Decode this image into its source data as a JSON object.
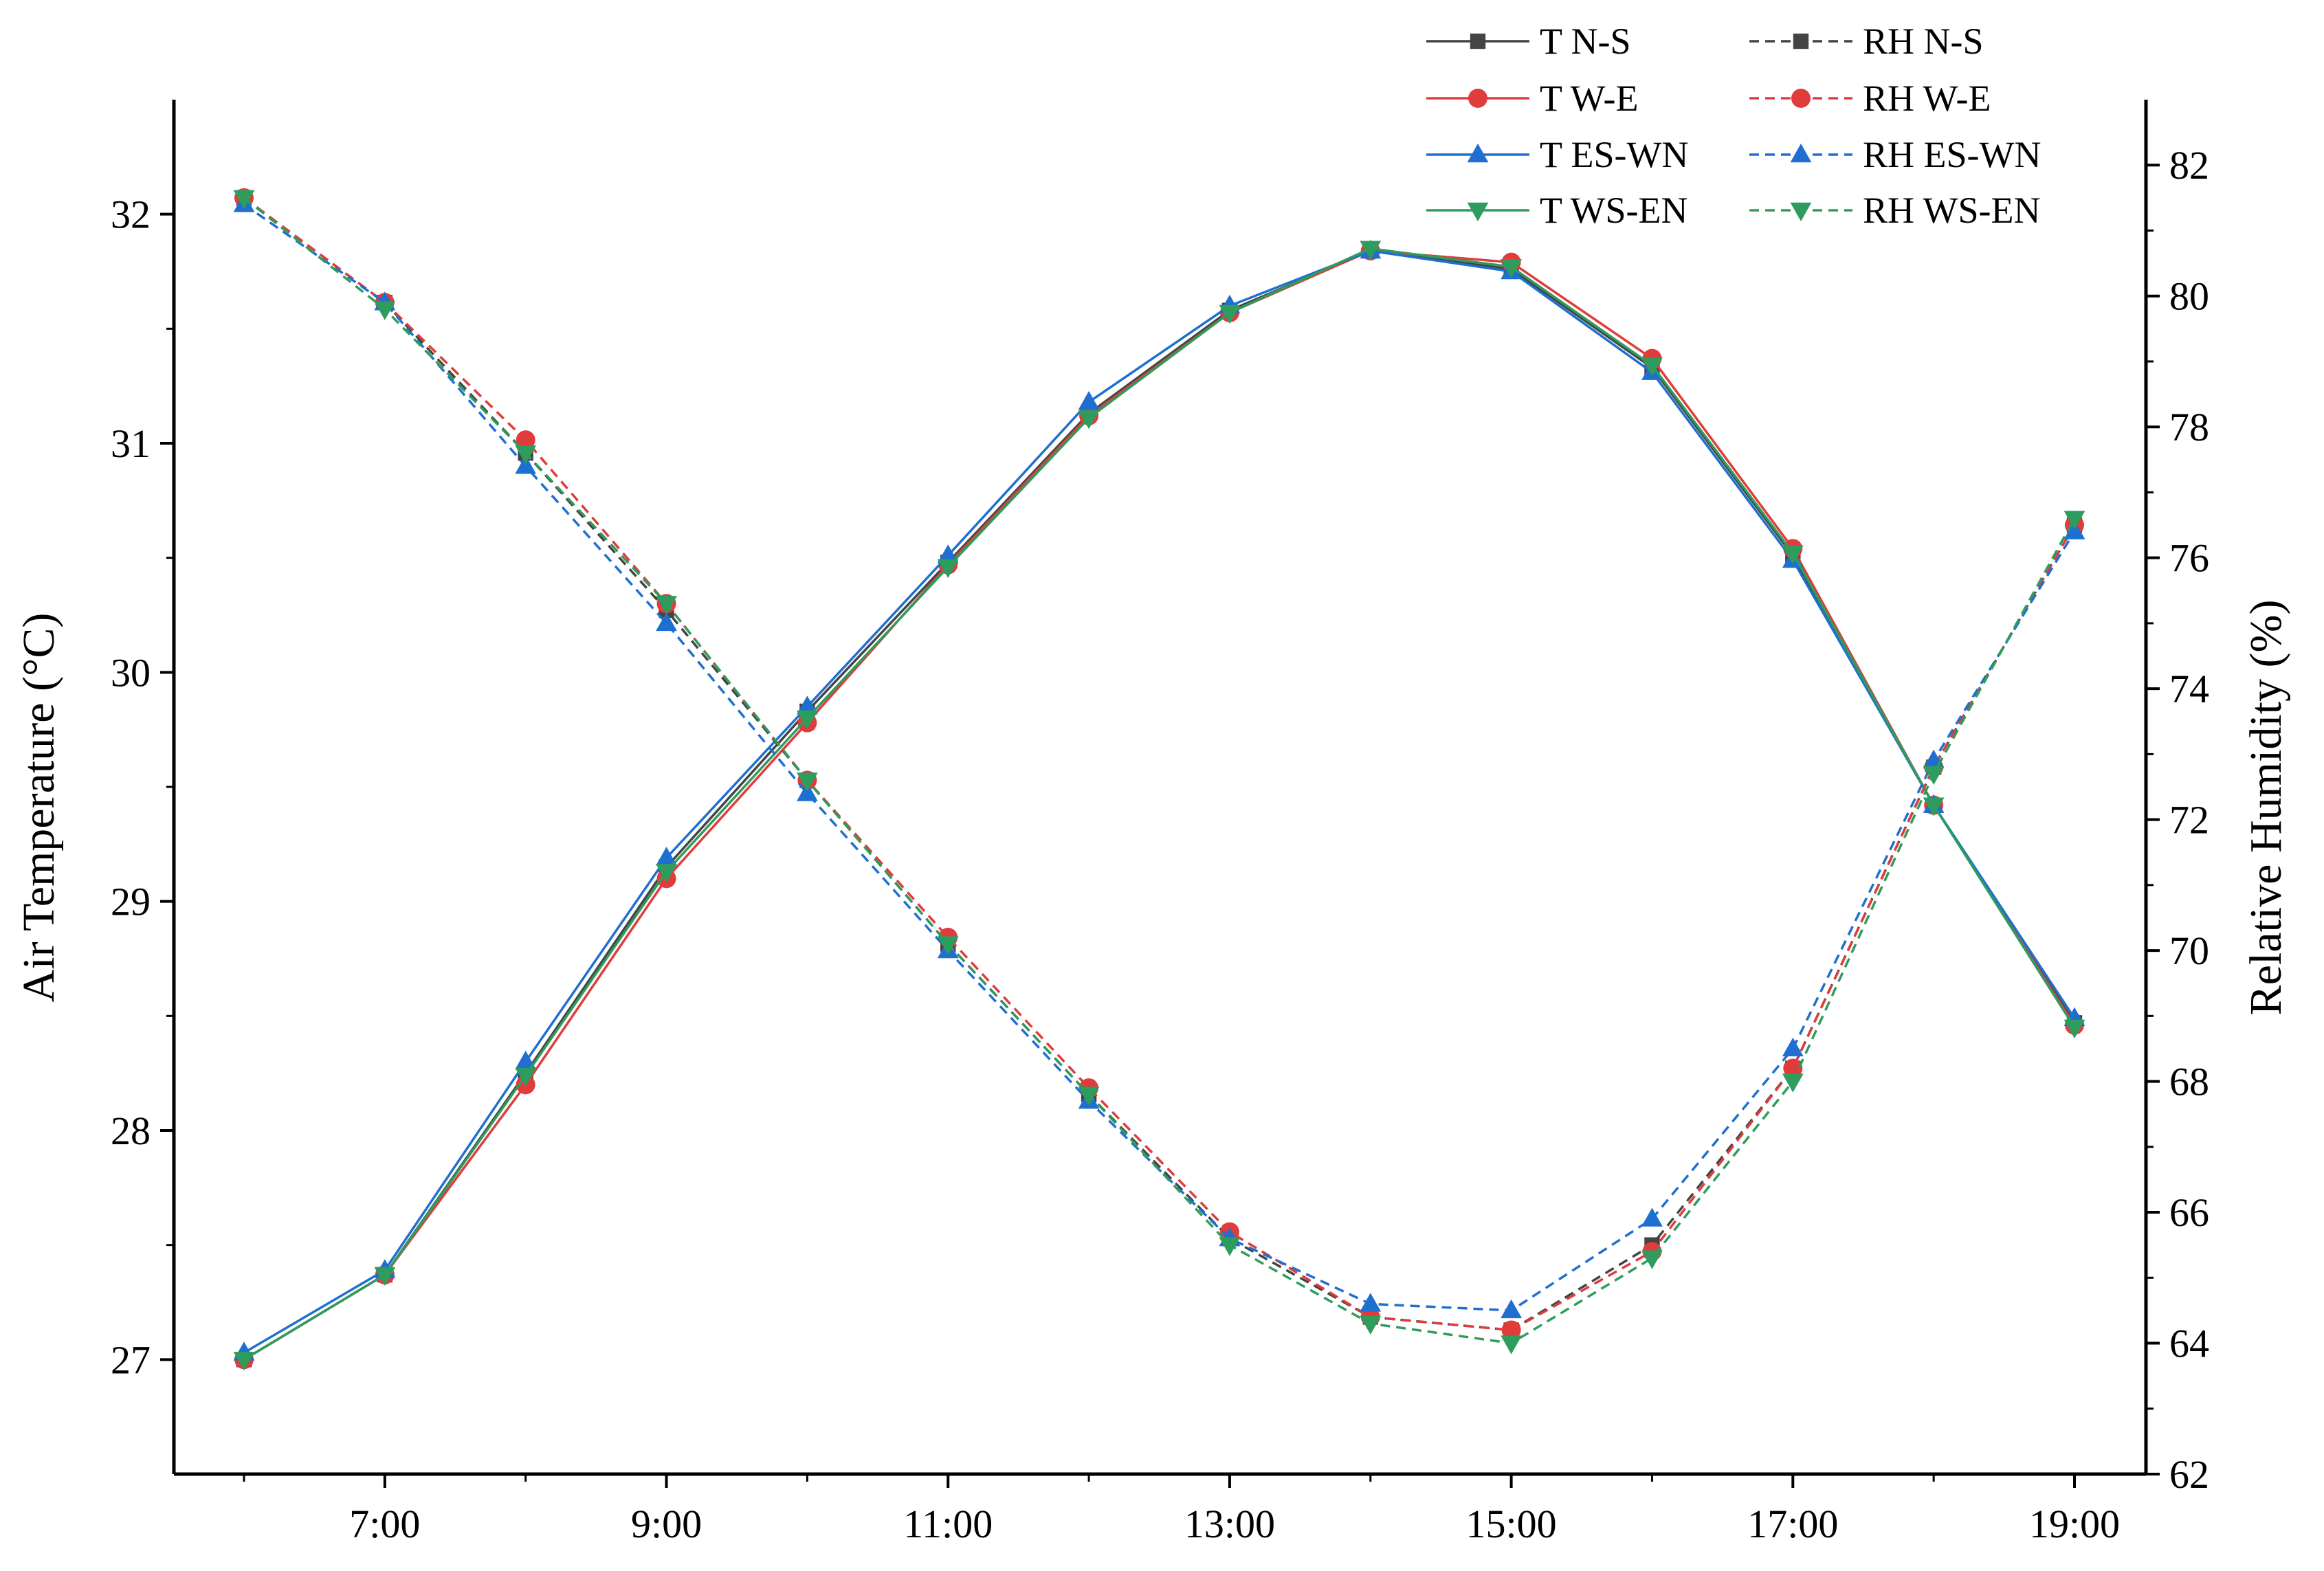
{
  "chart_data": {
    "type": "line",
    "x": [
      "6:00",
      "7:00",
      "8:00",
      "9:00",
      "10:00",
      "11:00",
      "12:00",
      "13:00",
      "14:00",
      "15:00",
      "16:00",
      "17:00",
      "18:00",
      "19:00"
    ],
    "x_tick_labels": [
      "7:00",
      "9:00",
      "11:00",
      "13:00",
      "15:00",
      "17:00",
      "19:00"
    ],
    "xlabel": "",
    "ylabel_left": "Air Temperature (°C)",
    "ylabel_right": "Relative Humidity (%)",
    "ylim_left": [
      26.5,
      32.5
    ],
    "ylim_right": [
      62,
      83
    ],
    "yticks_left": [
      27,
      28,
      29,
      30,
      31,
      32
    ],
    "yticks_right": [
      62,
      64,
      66,
      68,
      70,
      72,
      74,
      76,
      78,
      80,
      82
    ],
    "grid": false,
    "legend_position": "top-right",
    "series": [
      {
        "name": "T N-S",
        "axis": "left",
        "style": "solid",
        "marker": "square",
        "color": "#444444",
        "values": [
          27.0,
          27.37,
          28.25,
          29.15,
          29.83,
          30.48,
          31.13,
          31.58,
          31.84,
          31.76,
          31.33,
          30.51,
          29.42,
          28.47
        ]
      },
      {
        "name": "T W-E",
        "axis": "left",
        "style": "solid",
        "marker": "circle",
        "color": "#e03c3c",
        "values": [
          27.0,
          27.37,
          28.2,
          29.1,
          29.78,
          30.47,
          31.12,
          31.57,
          31.84,
          31.79,
          31.37,
          30.54,
          29.42,
          28.46
        ]
      },
      {
        "name": "T ES-WN",
        "axis": "left",
        "style": "solid",
        "marker": "triangle-up",
        "color": "#1f6fd1",
        "values": [
          27.03,
          27.39,
          28.3,
          29.19,
          29.85,
          30.51,
          31.18,
          31.6,
          31.84,
          31.75,
          31.31,
          30.49,
          29.42,
          28.49
        ]
      },
      {
        "name": "T WS-EN",
        "axis": "left",
        "style": "solid",
        "marker": "triangle-down",
        "color": "#2e9c5c",
        "values": [
          27.0,
          27.37,
          28.24,
          29.13,
          29.8,
          30.46,
          31.11,
          31.57,
          31.85,
          31.77,
          31.34,
          30.52,
          29.42,
          28.45
        ]
      },
      {
        "name": "RH N-S",
        "axis": "right",
        "style": "dashed",
        "marker": "square",
        "color": "#444444",
        "values": [
          81.5,
          79.9,
          77.6,
          75.2,
          72.6,
          70.1,
          67.8,
          65.6,
          64.4,
          64.2,
          65.5,
          68.2,
          72.8,
          76.5
        ]
      },
      {
        "name": "RH W-E",
        "axis": "right",
        "style": "dashed",
        "marker": "circle",
        "color": "#e03c3c",
        "values": [
          81.5,
          79.9,
          77.8,
          75.3,
          72.6,
          70.2,
          67.9,
          65.7,
          64.4,
          64.2,
          65.4,
          68.2,
          72.8,
          76.5
        ]
      },
      {
        "name": "RH ES-WN",
        "axis": "right",
        "style": "dashed",
        "marker": "triangle-up",
        "color": "#1f6fd1",
        "values": [
          81.4,
          79.9,
          77.4,
          75.0,
          72.4,
          70.0,
          67.7,
          65.6,
          64.6,
          64.5,
          65.9,
          68.5,
          72.9,
          76.4
        ]
      },
      {
        "name": "RH WS-EN",
        "axis": "right",
        "style": "dashed",
        "marker": "triangle-down",
        "color": "#2e9c5c",
        "values": [
          81.5,
          79.8,
          77.6,
          75.3,
          72.6,
          70.1,
          67.8,
          65.5,
          64.3,
          64.0,
          65.3,
          68.0,
          72.7,
          76.6
        ]
      }
    ]
  }
}
